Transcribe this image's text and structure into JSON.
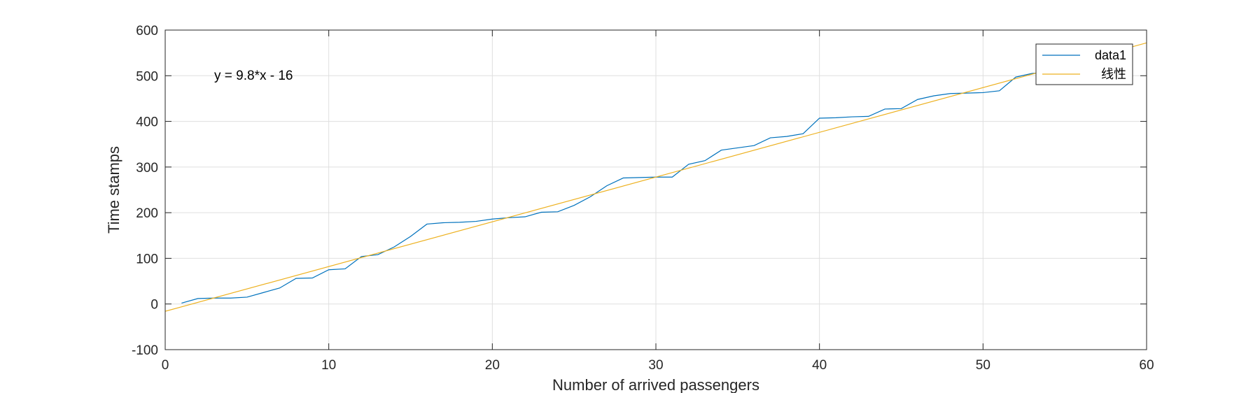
{
  "chart_data": {
    "type": "line",
    "xlabel": "Number of arrived  passengers",
    "ylabel": "Time stamps",
    "xlim": [
      0,
      60
    ],
    "ylim": [
      -100,
      600
    ],
    "xticks": [
      0,
      10,
      20,
      30,
      40,
      50,
      60
    ],
    "yticks": [
      -100,
      0,
      100,
      200,
      300,
      400,
      500,
      600
    ],
    "grid": true,
    "legend_position": "top-right",
    "annotation": "y = 9.8*x - 16",
    "series": [
      {
        "name": "data1",
        "color": "#0072BD",
        "x": [
          1,
          2,
          3,
          4,
          5,
          6,
          7,
          8,
          9,
          10,
          11,
          12,
          13,
          14,
          15,
          16,
          17,
          18,
          19,
          20,
          21,
          22,
          23,
          24,
          25,
          26,
          27,
          28,
          29,
          30,
          31,
          32,
          33,
          34,
          35,
          36,
          37,
          38,
          39,
          40,
          41,
          42,
          43,
          44,
          45,
          46,
          47,
          48,
          49,
          50,
          51,
          52,
          53,
          54
        ],
        "y": [
          2,
          12,
          13,
          13,
          15,
          25,
          35,
          56,
          57,
          75,
          77,
          104,
          108,
          125,
          148,
          175,
          178,
          179,
          181,
          186,
          189,
          191,
          201,
          202,
          216,
          235,
          259,
          276,
          277,
          278,
          278,
          306,
          314,
          337,
          342,
          347,
          364,
          367,
          373,
          407,
          408,
          410,
          411,
          427,
          428,
          448,
          456,
          461,
          462,
          463,
          467,
          497,
          505,
          507
        ]
      },
      {
        "name": "线性",
        "color": "#EDB120",
        "x": [
          0,
          60
        ],
        "y": [
          -16,
          572
        ]
      }
    ]
  }
}
